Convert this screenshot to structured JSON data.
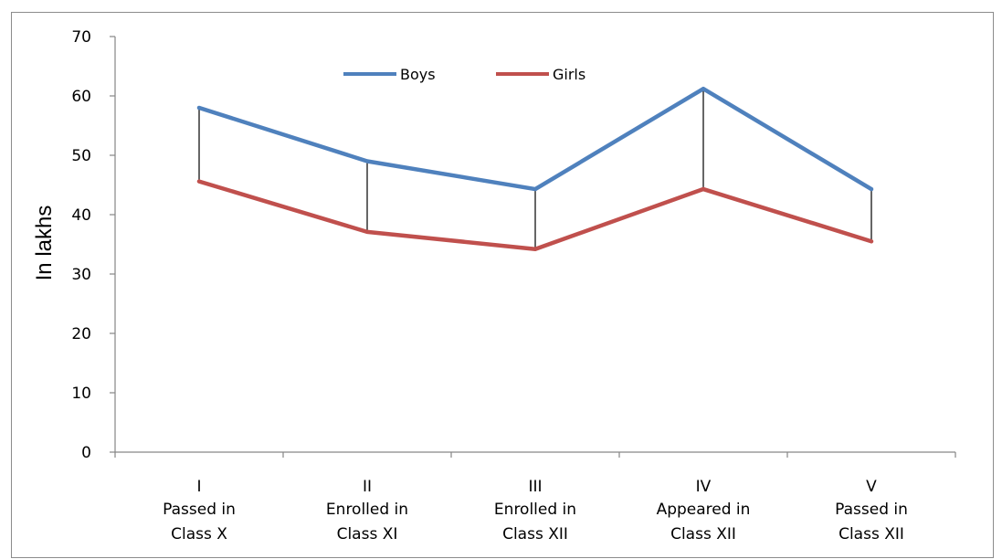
{
  "chart_data": {
    "type": "line",
    "ylabel": "In lakhs",
    "ylim": [
      0,
      70
    ],
    "yticks": [
      "0",
      "10",
      "20",
      "30",
      "40",
      "50",
      "60",
      "70"
    ],
    "categories": [
      {
        "numeral": "I",
        "line1": "Passed in",
        "line2": "Class X"
      },
      {
        "numeral": "II",
        "line1": "Enrolled in",
        "line2": "Class XI"
      },
      {
        "numeral": "III",
        "line1": "Enrolled in",
        "line2": "Class XII"
      },
      {
        "numeral": "IV",
        "line1": "Appeared in",
        "line2": "Class XII"
      },
      {
        "numeral": "V",
        "line1": "Passed in",
        "line2": "Class XII"
      }
    ],
    "series": [
      {
        "name": "Boys",
        "color": "#4f81bd",
        "values": [
          58,
          49,
          44.3,
          61.2,
          44.3
        ]
      },
      {
        "name": "Girls",
        "color": "#c0504d",
        "values": [
          45.6,
          37.1,
          34.2,
          44.3,
          35.5
        ]
      }
    ],
    "legend_position": "top-center",
    "drop_lines": true,
    "grid": false
  }
}
